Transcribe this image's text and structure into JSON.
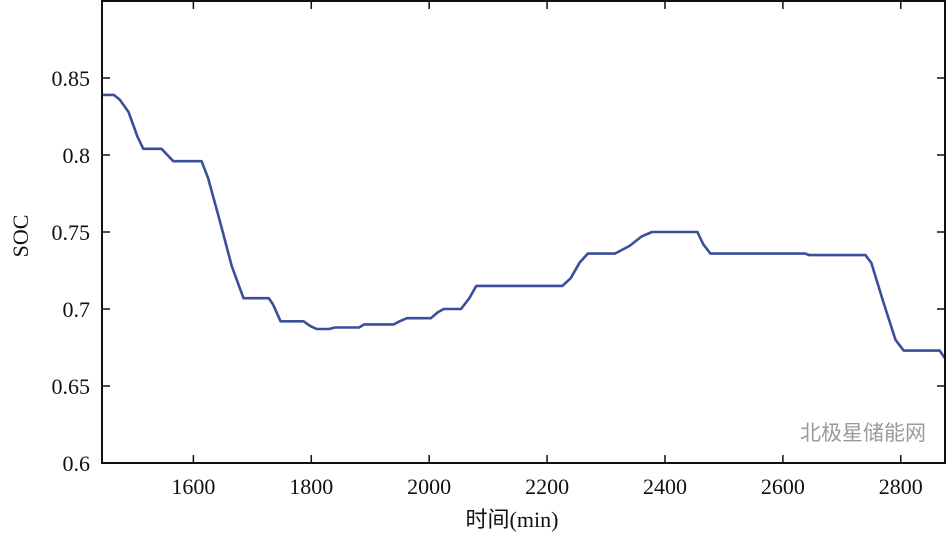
{
  "chart_data": {
    "type": "line",
    "title": "",
    "xlabel": "时间(min)",
    "ylabel": "SOC",
    "xlim": [
      1445,
      2875
    ],
    "ylim": [
      0.6,
      0.9
    ],
    "xticks": [
      1600,
      1800,
      2000,
      2200,
      2400,
      2600,
      2800
    ],
    "yticks": [
      0.6,
      0.65,
      0.7,
      0.75,
      0.8,
      0.85
    ],
    "ytick_labels": [
      "0.6",
      "0.65",
      "0.7",
      "0.75",
      "0.8",
      "0.85"
    ],
    "grid": false,
    "line_color": "#3a4f9a",
    "series": [
      {
        "x": [
          1445,
          1465,
          1475,
          1490,
          1505,
          1515,
          1546,
          1556,
          1566,
          1614,
          1625,
          1645,
          1665,
          1685,
          1728,
          1735,
          1748,
          1787,
          1798,
          1809,
          1830,
          1840,
          1881,
          1890,
          1940,
          1950,
          1962,
          2003,
          2015,
          2025,
          2054,
          2068,
          2080,
          2226,
          2240,
          2255,
          2269,
          2315,
          2340,
          2360,
          2378,
          2455,
          2465,
          2477,
          2638,
          2645,
          2740,
          2750,
          2770,
          2791,
          2805,
          2866,
          2875
        ],
        "y": [
          0.839,
          0.839,
          0.836,
          0.828,
          0.812,
          0.804,
          0.804,
          0.8,
          0.796,
          0.796,
          0.785,
          0.757,
          0.728,
          0.707,
          0.707,
          0.703,
          0.692,
          0.692,
          0.689,
          0.687,
          0.687,
          0.688,
          0.688,
          0.69,
          0.69,
          0.692,
          0.694,
          0.694,
          0.698,
          0.7,
          0.7,
          0.707,
          0.715,
          0.715,
          0.72,
          0.73,
          0.736,
          0.736,
          0.741,
          0.747,
          0.75,
          0.75,
          0.742,
          0.736,
          0.736,
          0.735,
          0.735,
          0.73,
          0.705,
          0.68,
          0.673,
          0.673,
          0.668
        ]
      }
    ]
  },
  "watermark": "北极星储能网"
}
